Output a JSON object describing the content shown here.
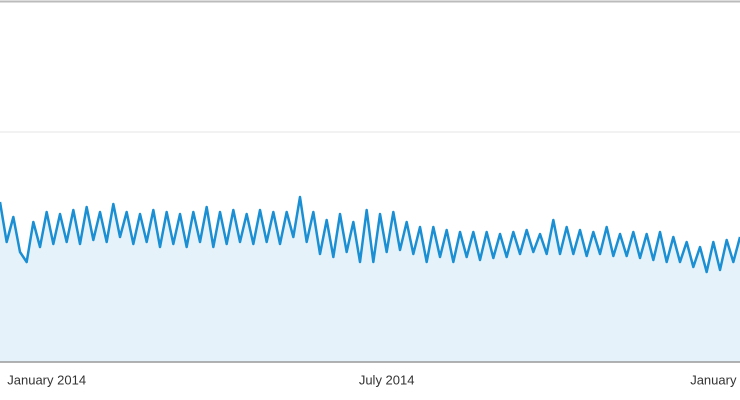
{
  "chart_data": {
    "type": "area",
    "categories": [
      null,
      null,
      null,
      null,
      null,
      null,
      null,
      "January 2014",
      null,
      null,
      null,
      null,
      null,
      null,
      null,
      null,
      null,
      null,
      null,
      null,
      null,
      null,
      null,
      null,
      null,
      null,
      null,
      null,
      null,
      null,
      null,
      null,
      null,
      null,
      null,
      null,
      null,
      null,
      null,
      null,
      null,
      null,
      null,
      null,
      null,
      null,
      null,
      null,
      null,
      null,
      null,
      null,
      null,
      null,
      null,
      null,
      null,
      null,
      "July 2014",
      null,
      null,
      null,
      null,
      null,
      null,
      null,
      null,
      null,
      null,
      null,
      null,
      null,
      null,
      null,
      null,
      null,
      null,
      null,
      null,
      null,
      null,
      null,
      null,
      null,
      null,
      null,
      null,
      null,
      null,
      null,
      null,
      null,
      null,
      null,
      null,
      null,
      null,
      null,
      null,
      null,
      null,
      null,
      null,
      null,
      null,
      null,
      null,
      "January",
      null,
      null,
      null,
      null
    ],
    "values": [
      160,
      120,
      145,
      110,
      100,
      140,
      115,
      150,
      118,
      148,
      120,
      152,
      118,
      155,
      122,
      150,
      120,
      158,
      125,
      150,
      118,
      148,
      120,
      152,
      115,
      150,
      118,
      148,
      115,
      150,
      120,
      155,
      115,
      150,
      118,
      152,
      120,
      148,
      118,
      152,
      120,
      150,
      118,
      150,
      125,
      165,
      120,
      150,
      108,
      142,
      105,
      148,
      110,
      140,
      100,
      152,
      100,
      148,
      110,
      150,
      112,
      140,
      108,
      135,
      100,
      135,
      105,
      132,
      100,
      130,
      105,
      130,
      102,
      130,
      104,
      128,
      105,
      130,
      108,
      132,
      110,
      128,
      108,
      142,
      108,
      135,
      108,
      132,
      106,
      130,
      108,
      135,
      106,
      128,
      106,
      130,
      104,
      128,
      102,
      130,
      100,
      125,
      100,
      120,
      95,
      115,
      90,
      120,
      92,
      122,
      100,
      125
    ],
    "color": "#1a8fd3",
    "fill": "#e6f2fa",
    "ylim": [
      0,
      360
    ],
    "yticks": [
      230
    ],
    "grid": true
  }
}
